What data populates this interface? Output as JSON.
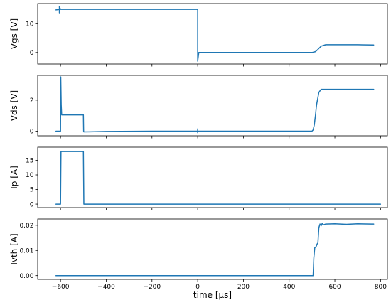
{
  "chart_data": {
    "type": "line",
    "xlabel": "time [µs]",
    "xlim": [
      -700,
      830
    ],
    "xticks": [
      -600,
      -400,
      -200,
      0,
      200,
      400,
      600,
      800
    ],
    "xtick_labels": [
      "−600",
      "−400",
      "−200",
      "0",
      "200",
      "400",
      "600",
      "800"
    ],
    "series_color": "#1f77b4",
    "grid": false,
    "panels": [
      {
        "name": "vgs",
        "ylabel": "Vgs [V]",
        "ylim": [
          -4,
          17
        ],
        "yticks": [
          0,
          10
        ],
        "ytick_labels": [
          "0",
          "10"
        ],
        "x": [
          -620,
          -610,
          -605,
          -605,
          -605,
          -600,
          -500,
          -300,
          -100,
          -3,
          -2,
          0,
          0,
          5,
          100,
          200,
          300,
          400,
          500,
          515,
          525,
          540,
          560,
          600,
          700,
          770
        ],
        "y": [
          14.8,
          14.9,
          15.0,
          13.8,
          16.0,
          15.0,
          15.0,
          15.0,
          15.0,
          15.0,
          15.0,
          15.0,
          -3.0,
          0.0,
          0.0,
          0.0,
          0.0,
          0.0,
          0.0,
          0.3,
          1.0,
          2.2,
          2.7,
          2.7,
          2.7,
          2.6
        ]
      },
      {
        "name": "vds",
        "ylabel": "Vds [V]",
        "ylim": [
          -0.3,
          3.6
        ],
        "yticks": [
          0,
          2
        ],
        "ytick_labels": [
          "0",
          "2"
        ],
        "x": [
          -620,
          -600,
          -599,
          -597,
          -595,
          -594,
          -500,
          -499,
          -498,
          -400,
          -200,
          0,
          0,
          0,
          1,
          200,
          400,
          500,
          505,
          510,
          515,
          520,
          530,
          540,
          560,
          700,
          770
        ],
        "y": [
          0.0,
          0.0,
          3.5,
          1.7,
          1.05,
          1.05,
          1.05,
          0.0,
          -0.05,
          -0.02,
          0.0,
          0.0,
          0.15,
          -0.1,
          0.0,
          0.0,
          0.0,
          0.0,
          0.08,
          0.4,
          1.0,
          1.7,
          2.5,
          2.7,
          2.7,
          2.7,
          2.7
        ]
      },
      {
        "name": "ip",
        "ylabel": "Ip [A]",
        "ylim": [
          -1.2,
          19.5
        ],
        "yticks": [
          0,
          5,
          10,
          15
        ],
        "ytick_labels": [
          "0",
          "5",
          "10",
          "15"
        ],
        "x": [
          -620,
          -600,
          -598,
          -500,
          -498,
          0,
          800
        ],
        "y": [
          0.0,
          0.0,
          18.0,
          18.0,
          0.0,
          0.0,
          0.0
        ]
      },
      {
        "name": "ivth",
        "ylabel": "Ivth [A]",
        "ylim": [
          -0.0015,
          0.0225
        ],
        "yticks": [
          0.0,
          0.01,
          0.02
        ],
        "ytick_labels": [
          "0.00",
          "0.01",
          "0.02"
        ],
        "x": [
          -620,
          -400,
          -200,
          0,
          200,
          400,
          500,
          505,
          508,
          512,
          518,
          522,
          526,
          530,
          535,
          540,
          545,
          550,
          560,
          600,
          650,
          700,
          760,
          770
        ],
        "y": [
          0.0,
          0.0,
          0.0,
          0.0,
          0.0,
          0.0,
          0.0,
          0.0,
          0.007,
          0.011,
          0.0115,
          0.0125,
          0.013,
          0.019,
          0.0205,
          0.0198,
          0.0208,
          0.0202,
          0.0205,
          0.0206,
          0.0204,
          0.0206,
          0.0205,
          0.0205
        ]
      }
    ]
  }
}
